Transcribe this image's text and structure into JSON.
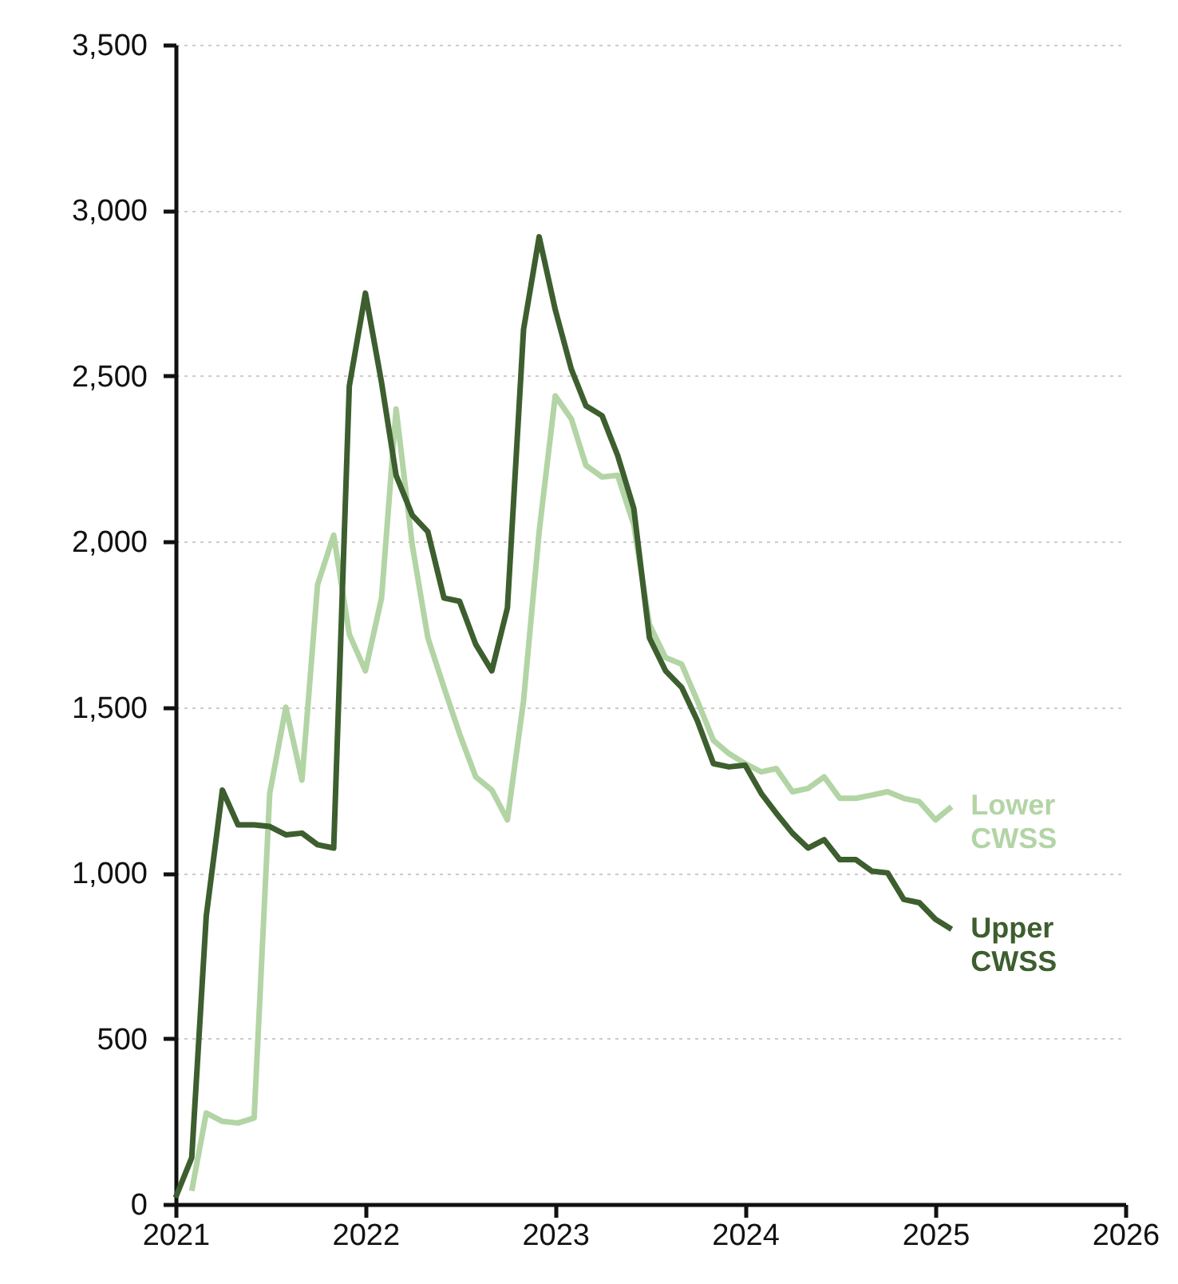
{
  "chart_data": {
    "type": "line",
    "x": [
      "2021-01",
      "2021-02",
      "2021-03",
      "2021-04",
      "2021-05",
      "2021-06",
      "2021-07",
      "2021-08",
      "2021-09",
      "2021-10",
      "2021-11",
      "2021-12",
      "2022-01",
      "2022-02",
      "2022-03",
      "2022-04",
      "2022-05",
      "2022-06",
      "2022-07",
      "2022-08",
      "2022-09",
      "2022-10",
      "2022-11",
      "2022-12",
      "2023-01",
      "2023-02",
      "2023-03",
      "2023-04",
      "2023-05",
      "2023-06",
      "2023-07",
      "2023-08",
      "2023-09",
      "2023-10",
      "2023-11",
      "2023-12",
      "2024-01",
      "2024-02",
      "2024-03",
      "2024-04",
      "2024-05",
      "2024-06",
      "2024-07",
      "2024-08",
      "2024-09",
      "2024-10",
      "2024-11",
      "2024-12",
      "2025-01",
      "2025-02"
    ],
    "series": [
      {
        "name": "Lower CWSS",
        "color": "#b3d4a5",
        "values": [
          null,
          40,
          275,
          250,
          245,
          260,
          1240,
          1500,
          1280,
          1870,
          2020,
          1720,
          1610,
          1830,
          2400,
          1990,
          1710,
          1560,
          1420,
          1290,
          1250,
          1160,
          1520,
          2030,
          2440,
          2370,
          2230,
          2195,
          2200,
          2050,
          1750,
          1650,
          1630,
          1520,
          1400,
          1360,
          1330,
          1305,
          1315,
          1245,
          1255,
          1290,
          1225,
          1225,
          1235,
          1245,
          1225,
          1215,
          1160,
          1200
        ]
      },
      {
        "name": "Upper CWSS",
        "color": "#3d5e2e",
        "values": [
          20,
          140,
          870,
          1250,
          1145,
          1145,
          1140,
          1115,
          1120,
          1085,
          1075,
          2470,
          2750,
          2480,
          2200,
          2080,
          2030,
          1830,
          1820,
          1690,
          1610,
          1800,
          2640,
          2920,
          2700,
          2520,
          2410,
          2380,
          2260,
          2100,
          1710,
          1610,
          1560,
          1460,
          1330,
          1320,
          1325,
          1240,
          1180,
          1120,
          1075,
          1100,
          1040,
          1040,
          1005,
          1000,
          920,
          910,
          860,
          830
        ]
      }
    ],
    "xlim": [
      "2021",
      "2026"
    ],
    "xticks": [
      "2021",
      "2022",
      "2023",
      "2024",
      "2025",
      "2026"
    ],
    "ylim": [
      0,
      3500
    ],
    "yticks": [
      0,
      500,
      {
        "value": 1000,
        "label": "1,000"
      },
      {
        "value": 1500,
        "label": "1,500"
      },
      {
        "value": 2000,
        "label": "2,000"
      },
      {
        "value": 2500,
        "label": "2,500"
      },
      {
        "value": 3000,
        "label": "3,000"
      },
      {
        "value": 3500,
        "label": "3,500"
      }
    ],
    "grid": "y",
    "legend": false,
    "marker": "none",
    "line_style": "solid"
  }
}
